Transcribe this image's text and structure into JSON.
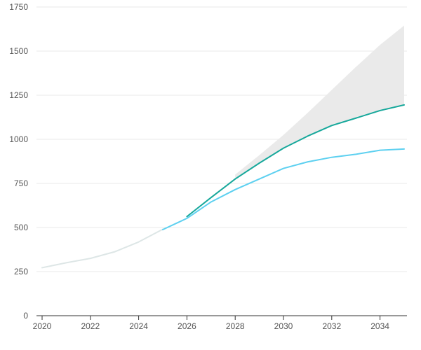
{
  "chart_data": {
    "type": "line",
    "title": "",
    "xlabel": "",
    "ylabel": "",
    "xlim": [
      2020,
      2035
    ],
    "ylim": [
      0,
      1750
    ],
    "x_ticks": [
      "2020",
      "2022",
      "2024",
      "2026",
      "2028",
      "2030",
      "2032",
      "2034"
    ],
    "y_ticks": [
      "0",
      "250",
      "500",
      "750",
      "1000",
      "1250",
      "1500",
      "1750"
    ],
    "grid": "horizontal",
    "colors": {
      "historical": "#dde6e6",
      "forecast_low": "#5dd0f0",
      "forecast_high": "#17a89b",
      "range_band": "#eaeaea",
      "grid": "#e8e8e8",
      "axis": "#333333"
    },
    "series": [
      {
        "role": "historical",
        "x": [
          2020,
          2021,
          2022,
          2023,
          2024,
          2025
        ],
        "values": [
          272,
          300,
          325,
          362,
          418,
          490
        ]
      },
      {
        "role": "forecast_low",
        "x": [
          2025,
          2026,
          2027,
          2028,
          2029,
          2030,
          2031,
          2032,
          2033,
          2034,
          2035
        ],
        "values": [
          488,
          552,
          645,
          715,
          775,
          835,
          872,
          898,
          915,
          938,
          945
        ]
      },
      {
        "role": "forecast_high",
        "x": [
          2026,
          2027,
          2028,
          2029,
          2030,
          2031,
          2032,
          2033,
          2034,
          2035
        ],
        "values": [
          562,
          670,
          775,
          865,
          950,
          1018,
          1078,
          1120,
          1163,
          1195
        ]
      }
    ],
    "band": {
      "x": [
        2028,
        2029,
        2030,
        2031,
        2032,
        2033,
        2034,
        2035
      ],
      "lower": [
        775,
        865,
        950,
        1018,
        1078,
        1120,
        1163,
        1195
      ],
      "upper": [
        800,
        910,
        1025,
        1150,
        1280,
        1410,
        1535,
        1645
      ]
    }
  }
}
